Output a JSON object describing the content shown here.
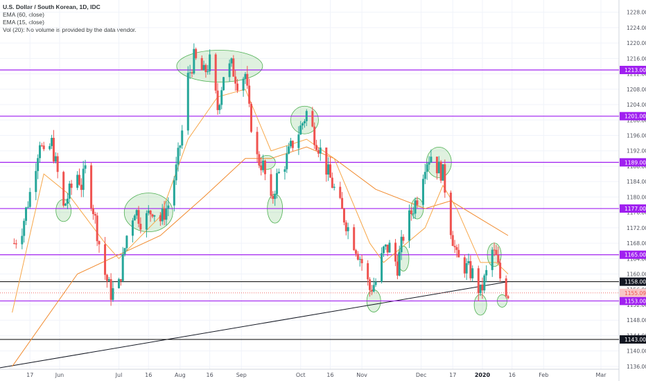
{
  "legend": {
    "title": "U.S. Dollar / South Korean, 1D, IDC",
    "ema60": "EMA (60, close)",
    "ema15": "EMA (15, close)",
    "vol": "Vol (20): No volume is provided by the data vendor."
  },
  "colors": {
    "up": "#26a69a",
    "down": "#ef5350",
    "ema15": "#f7a648",
    "ema60": "#f18a2e",
    "level_line": "#a020f0",
    "black_line": "#000000",
    "price_line": "#ef5350",
    "ellipse_fill": "rgba(76,175,80,0.18)",
    "ellipse_stroke": "#4caf50"
  },
  "chart_data": {
    "type": "candlestick",
    "y_axis": {
      "range": [
        1134,
        1231
      ],
      "tick_labels": [
        "1228.00",
        "1224.00",
        "1220.00",
        "1216.00",
        "1212.00",
        "1208.00",
        "1204.00",
        "1200.00",
        "1196.00",
        "1192.00",
        "1188.00",
        "1184.00",
        "1180.00",
        "1176.00",
        "1172.00",
        "1168.00",
        "1164.00",
        "1160.00",
        "1156.00",
        "1152.00",
        "1148.00",
        "1144.00",
        "1140.00",
        "1136.00"
      ]
    },
    "x_axis": {
      "tick_labels": [
        "17",
        "Jun",
        "Jul",
        "16",
        "Aug",
        "16",
        "Sep",
        "Oct",
        "16",
        "Nov",
        "Dec",
        "17",
        "2020",
        "16",
        "Feb",
        "Mar"
      ],
      "bold_label": "2020"
    },
    "horizontal_levels": [
      {
        "value": 1213,
        "label": "1213.00",
        "style": "purple"
      },
      {
        "value": 1201,
        "label": "1201.00",
        "style": "purple"
      },
      {
        "value": 1189,
        "label": "1189.00",
        "style": "purple"
      },
      {
        "value": 1177,
        "label": "1177.00",
        "style": "purple"
      },
      {
        "value": 1165,
        "label": "1165.00",
        "style": "purple"
      },
      {
        "value": 1153,
        "label": "1153.00",
        "style": "purple"
      },
      {
        "value": 1158,
        "label": "1158.00",
        "style": "black"
      },
      {
        "value": 1143,
        "label": "1143.00",
        "style": "black"
      }
    ],
    "last_price": {
      "value": 1155.09,
      "label": "1155.09"
    },
    "diagonal_line": {
      "from": {
        "x": "May 8",
        "y": 1136
      },
      "to": {
        "x": "Jan 14",
        "y": 1158
      }
    },
    "candle_path": [
      {
        "x": "May 9",
        "y": 1168
      },
      {
        "x": "May 13",
        "y": 1172
      },
      {
        "x": "May 17",
        "y": 1181
      },
      {
        "x": "May 20",
        "y": 1189
      },
      {
        "x": "May 22",
        "y": 1195
      },
      {
        "x": "May 24",
        "y": 1190
      },
      {
        "x": "May 28",
        "y": 1194
      },
      {
        "x": "May 31",
        "y": 1186
      },
      {
        "x": "Jun 3",
        "y": 1177
      },
      {
        "x": "Jun 5",
        "y": 1180
      },
      {
        "x": "Jun 10",
        "y": 1186
      },
      {
        "x": "Jun 12",
        "y": 1183
      },
      {
        "x": "Jun 14",
        "y": 1187
      },
      {
        "x": "Jun 18",
        "y": 1177
      },
      {
        "x": "Jun 21",
        "y": 1168
      },
      {
        "x": "Jun 24",
        "y": 1160
      },
      {
        "x": "Jun 27",
        "y": 1155
      },
      {
        "x": "Jul 1",
        "y": 1157
      },
      {
        "x": "Jul 5",
        "y": 1170
      },
      {
        "x": "Jul 9",
        "y": 1177
      },
      {
        "x": "Jul 13",
        "y": 1173
      },
      {
        "x": "Jul 18",
        "y": 1177
      },
      {
        "x": "Jul 22",
        "y": 1174
      },
      {
        "x": "Jul 26",
        "y": 1178
      },
      {
        "x": "Jul 30",
        "y": 1187
      },
      {
        "x": "Aug 2",
        "y": 1197
      },
      {
        "x": "Aug 5",
        "y": 1211
      },
      {
        "x": "Aug 8",
        "y": 1216
      },
      {
        "x": "Aug 13",
        "y": 1212
      },
      {
        "x": "Aug 16",
        "y": 1215
      },
      {
        "x": "Aug 20",
        "y": 1203
      },
      {
        "x": "Aug 23",
        "y": 1212
      },
      {
        "x": "Aug 27",
        "y": 1214
      },
      {
        "x": "Aug 30",
        "y": 1210
      },
      {
        "x": "Sep 3",
        "y": 1212
      },
      {
        "x": "Sep 5",
        "y": 1202
      },
      {
        "x": "Sep 9",
        "y": 1190
      },
      {
        "x": "Sep 12",
        "y": 1188
      },
      {
        "x": "Sep 16",
        "y": 1178
      },
      {
        "x": "Sep 19",
        "y": 1185
      },
      {
        "x": "Sep 24",
        "y": 1190
      },
      {
        "x": "Sep 27",
        "y": 1194
      },
      {
        "x": "Oct 1",
        "y": 1198
      },
      {
        "x": "Oct 4",
        "y": 1202
      },
      {
        "x": "Oct 8",
        "y": 1196
      },
      {
        "x": "Oct 11",
        "y": 1192
      },
      {
        "x": "Oct 15",
        "y": 1186
      },
      {
        "x": "Oct 18",
        "y": 1182
      },
      {
        "x": "Oct 22",
        "y": 1176
      },
      {
        "x": "Oct 25",
        "y": 1172
      },
      {
        "x": "Oct 29",
        "y": 1167
      },
      {
        "x": "Nov 1",
        "y": 1163
      },
      {
        "x": "Nov 5",
        "y": 1156
      },
      {
        "x": "Nov 8",
        "y": 1158
      },
      {
        "x": "Nov 12",
        "y": 1166
      },
      {
        "x": "Nov 15",
        "y": 1167
      },
      {
        "x": "Nov 19",
        "y": 1162
      },
      {
        "x": "Nov 22",
        "y": 1170
      },
      {
        "x": "Nov 26",
        "y": 1176
      },
      {
        "x": "Nov 29",
        "y": 1180
      },
      {
        "x": "Dec 3",
        "y": 1189
      },
      {
        "x": "Dec 6",
        "y": 1191
      },
      {
        "x": "Dec 9",
        "y": 1188
      },
      {
        "x": "Dec 12",
        "y": 1186
      },
      {
        "x": "Dec 16",
        "y": 1172
      },
      {
        "x": "Dec 19",
        "y": 1164
      },
      {
        "x": "Dec 23",
        "y": 1162
      },
      {
        "x": "Dec 27",
        "y": 1160
      },
      {
        "x": "Dec 31",
        "y": 1155
      },
      {
        "x": "Jan 3",
        "y": 1160
      },
      {
        "x": "Jan 6",
        "y": 1166
      },
      {
        "x": "Jan 8",
        "y": 1164
      },
      {
        "x": "Jan 10",
        "y": 1159
      },
      {
        "x": "Jan 14",
        "y": 1155
      }
    ],
    "ema15": [
      {
        "x": "May 8",
        "y": 1150
      },
      {
        "x": "May 24",
        "y": 1186
      },
      {
        "x": "Jun 5",
        "y": 1181
      },
      {
        "x": "Jun 24",
        "y": 1168
      },
      {
        "x": "Jul 1",
        "y": 1164
      },
      {
        "x": "Jul 22",
        "y": 1175
      },
      {
        "x": "Aug 5",
        "y": 1195
      },
      {
        "x": "Aug 20",
        "y": 1206
      },
      {
        "x": "Sep 3",
        "y": 1208
      },
      {
        "x": "Sep 16",
        "y": 1192
      },
      {
        "x": "Oct 4",
        "y": 1195
      },
      {
        "x": "Oct 18",
        "y": 1190
      },
      {
        "x": "Nov 5",
        "y": 1168
      },
      {
        "x": "Nov 12",
        "y": 1163
      },
      {
        "x": "Dec 3",
        "y": 1172
      },
      {
        "x": "Dec 12",
        "y": 1183
      },
      {
        "x": "Dec 19",
        "y": 1177
      },
      {
        "x": "Dec 31",
        "y": 1163
      },
      {
        "x": "Jan 8",
        "y": 1163
      },
      {
        "x": "Jan 14",
        "y": 1160
      }
    ],
    "ema60": [
      {
        "x": "May 8",
        "y": 1136
      },
      {
        "x": "Jun 10",
        "y": 1160
      },
      {
        "x": "Jul 1",
        "y": 1165
      },
      {
        "x": "Jul 22",
        "y": 1170
      },
      {
        "x": "Aug 13",
        "y": 1180
      },
      {
        "x": "Sep 3",
        "y": 1190
      },
      {
        "x": "Sep 16",
        "y": 1190
      },
      {
        "x": "Oct 4",
        "y": 1193
      },
      {
        "x": "Oct 18",
        "y": 1190
      },
      {
        "x": "Nov 8",
        "y": 1182
      },
      {
        "x": "Dec 3",
        "y": 1177
      },
      {
        "x": "Dec 16",
        "y": 1179
      },
      {
        "x": "Jan 1",
        "y": 1174
      },
      {
        "x": "Jan 14",
        "y": 1170
      }
    ],
    "highlight_regions": [
      {
        "x": "Jun 3",
        "y": 1176.5
      },
      {
        "x": "Jul 16",
        "y": 1176
      },
      {
        "x": "Aug 21",
        "y": 1214
      },
      {
        "x": "Sep 14",
        "y": 1189
      },
      {
        "x": "Sep 18",
        "y": 1177
      },
      {
        "x": "Oct 3",
        "y": 1200
      },
      {
        "x": "Nov 7",
        "y": 1153
      },
      {
        "x": "Nov 22",
        "y": 1164
      },
      {
        "x": "Nov 29",
        "y": 1177
      },
      {
        "x": "Dec 10",
        "y": 1189
      },
      {
        "x": "Dec 31",
        "y": 1152
      },
      {
        "x": "Jan 7",
        "y": 1165
      },
      {
        "x": "Jan 11",
        "y": 1153
      }
    ]
  }
}
